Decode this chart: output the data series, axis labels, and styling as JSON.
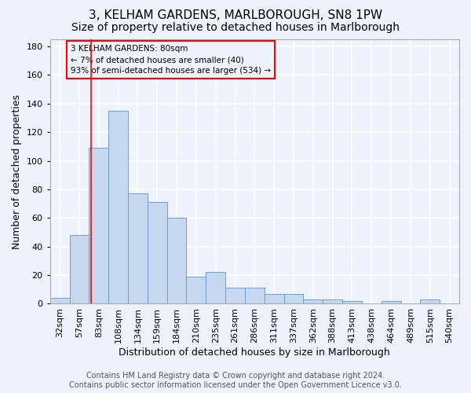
{
  "title1": "3, KELHAM GARDENS, MARLBOROUGH, SN8 1PW",
  "title2": "Size of property relative to detached houses in Marlborough",
  "xlabel": "Distribution of detached houses by size in Marlborough",
  "ylabel": "Number of detached properties",
  "categories": [
    "32sqm",
    "57sqm",
    "83sqm",
    "108sqm",
    "134sqm",
    "159sqm",
    "184sqm",
    "210sqm",
    "235sqm",
    "261sqm",
    "286sqm",
    "311sqm",
    "337sqm",
    "362sqm",
    "388sqm",
    "413sqm",
    "438sqm",
    "464sqm",
    "489sqm",
    "515sqm",
    "540sqm"
  ],
  "values": [
    4,
    48,
    109,
    135,
    77,
    71,
    60,
    19,
    22,
    11,
    11,
    7,
    7,
    3,
    3,
    2,
    0,
    2,
    0,
    3,
    0
  ],
  "bar_color": "#c5d8f0",
  "bar_edge_color": "#6a9fd8",
  "ylim": [
    0,
    185
  ],
  "yticks": [
    0,
    20,
    40,
    60,
    80,
    100,
    120,
    140,
    160,
    180
  ],
  "annotation_text": "3 KELHAM GARDENS: 80sqm\n← 7% of detached houses are smaller (40)\n93% of semi-detached houses are larger (534) →",
  "vline_x_idx": 1.62,
  "footer_line1": "Contains HM Land Registry data © Crown copyright and database right 2024.",
  "footer_line2": "Contains public sector information licensed under the Open Government Licence v3.0.",
  "bg_color": "#eef2fa",
  "grid_color": "#ffffff",
  "title_fontsize": 11,
  "subtitle_fontsize": 10,
  "axis_label_fontsize": 9,
  "tick_fontsize": 8,
  "footer_fontsize": 7
}
